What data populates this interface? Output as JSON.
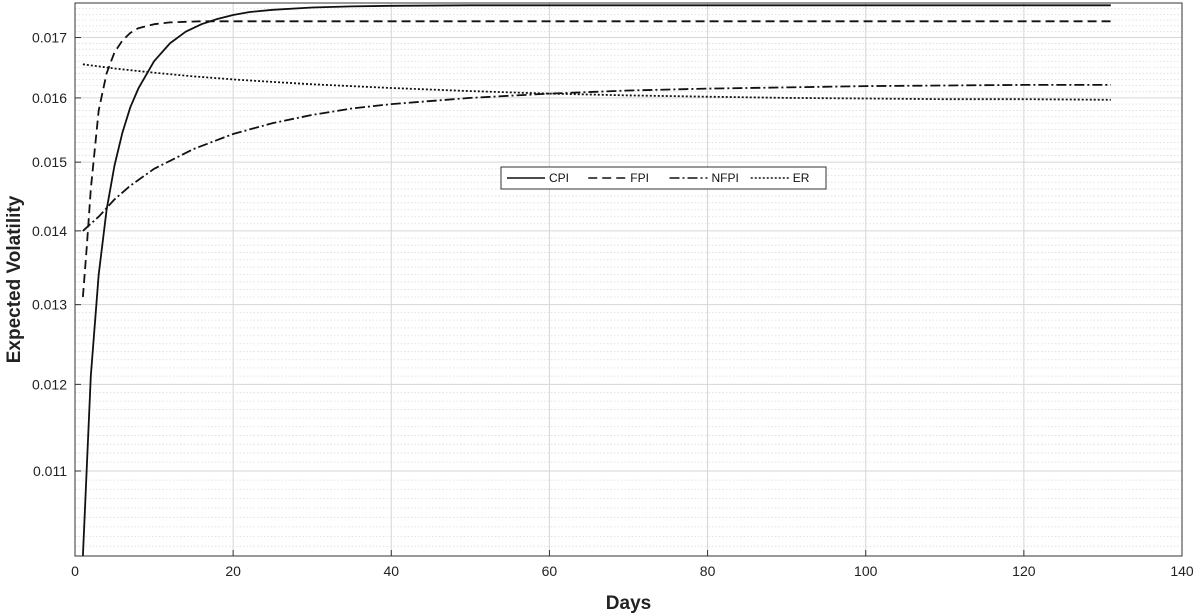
{
  "chart_data": {
    "type": "line",
    "title": "",
    "xlabel": "Days",
    "ylabel": "Expected Volatility",
    "xlim": [
      0,
      140
    ],
    "ylim": [
      0.0101,
      0.0176
    ],
    "xticks": [
      0,
      20,
      40,
      60,
      80,
      100,
      120,
      140
    ],
    "xtick_labels": [
      "0",
      "20",
      "40",
      "60",
      "80",
      "100",
      "120",
      "140"
    ],
    "yticks": [
      0.011,
      0.012,
      0.013,
      0.014,
      0.015,
      0.016,
      0.017
    ],
    "ytick_labels": [
      "0.011",
      "0.012",
      "0.013",
      "0.014",
      "0.015",
      "0.016",
      "0.017"
    ],
    "y_scale": "log",
    "grid": true,
    "minor_grid": true,
    "legend": {
      "placement": "center",
      "orientation": "horizontal"
    },
    "series": [
      {
        "name": "CPI",
        "style": "solid",
        "color": "#111111",
        "x": [
          1,
          2,
          3,
          4,
          5,
          6,
          7,
          8,
          10,
          12,
          14,
          16,
          18,
          20,
          22,
          25,
          30,
          35,
          40,
          50,
          60,
          80,
          100,
          120,
          131
        ],
        "y": [
          0.0101,
          0.0121,
          0.0134,
          0.0143,
          0.01495,
          0.01545,
          0.01585,
          0.01615,
          0.0166,
          0.0169,
          0.0171,
          0.01723,
          0.01732,
          0.01739,
          0.01744,
          0.01748,
          0.01752,
          0.01754,
          0.01755,
          0.01756,
          0.01756,
          0.01756,
          0.01756,
          0.01756,
          0.01756
        ]
      },
      {
        "name": "FPI",
        "style": "dashed",
        "color": "#111111",
        "x": [
          1,
          1.5,
          2,
          3,
          4,
          5,
          6,
          7,
          8,
          10,
          12,
          14,
          16,
          20,
          30,
          40,
          60,
          80,
          100,
          120,
          131
        ],
        "y": [
          0.0131,
          0.0138,
          0.0146,
          0.0158,
          0.0164,
          0.01675,
          0.01695,
          0.01708,
          0.01716,
          0.01723,
          0.01726,
          0.01727,
          0.01728,
          0.01728,
          0.01728,
          0.01728,
          0.01728,
          0.01728,
          0.01728,
          0.01728,
          0.01728
        ]
      },
      {
        "name": "NFPI",
        "style": "dash-dot",
        "color": "#111111",
        "x": [
          1,
          3,
          5,
          7,
          10,
          15,
          20,
          25,
          30,
          35,
          40,
          50,
          60,
          70,
          80,
          90,
          100,
          110,
          120,
          131
        ],
        "y": [
          0.014,
          0.0142,
          0.01445,
          0.01465,
          0.0149,
          0.0152,
          0.01543,
          0.0156,
          0.01573,
          0.01583,
          0.0159,
          0.016,
          0.01607,
          0.01612,
          0.01615,
          0.01617,
          0.01619,
          0.0162,
          0.01621,
          0.01621
        ]
      },
      {
        "name": "ER",
        "style": "dotted",
        "color": "#111111",
        "x": [
          1,
          5,
          10,
          15,
          20,
          25,
          30,
          40,
          50,
          60,
          70,
          80,
          90,
          100,
          110,
          120,
          131
        ],
        "y": [
          0.01655,
          0.01648,
          0.01641,
          0.01635,
          0.0163,
          0.01626,
          0.01622,
          0.01616,
          0.01611,
          0.01607,
          0.01604,
          0.01602,
          0.016,
          0.01599,
          0.01598,
          0.01598,
          0.01597
        ]
      }
    ]
  }
}
